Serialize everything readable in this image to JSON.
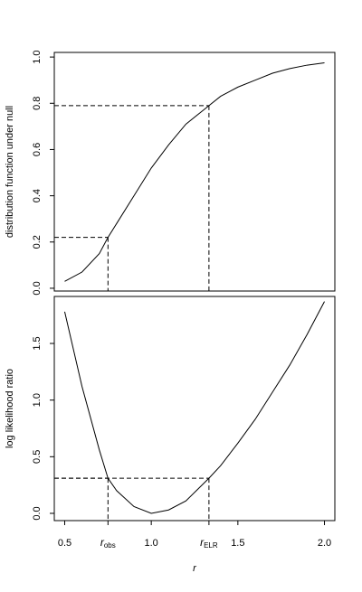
{
  "chart_data": [
    {
      "type": "line",
      "ylabel": "distribution function under null",
      "x": [
        0.5,
        0.6,
        0.7,
        0.75,
        0.8,
        0.9,
        1.0,
        1.1,
        1.2,
        1.3,
        1.333,
        1.4,
        1.5,
        1.6,
        1.7,
        1.8,
        1.9,
        2.0
      ],
      "values": [
        0.03,
        0.07,
        0.15,
        0.22,
        0.28,
        0.4,
        0.52,
        0.62,
        0.71,
        0.77,
        0.79,
        0.83,
        0.87,
        0.9,
        0.93,
        0.95,
        0.965,
        0.975
      ],
      "color": "#000000",
      "xlim": [
        0.44,
        2.06
      ],
      "ylim": [
        -0.012,
        1.02
      ],
      "yticks": [
        {
          "value": 0,
          "label": "0.0"
        },
        0.2,
        0.4,
        0.6,
        0.8,
        {
          "value": 1,
          "label": "1.0"
        }
      ],
      "reference_lines": [
        {
          "x": 0.75,
          "y": 0.22
        },
        {
          "x": 1.333,
          "y": 0.79
        }
      ]
    },
    {
      "type": "line",
      "ylabel": "log likelihood ratio",
      "xlabel": "r",
      "x": [
        0.5,
        0.6,
        0.7,
        0.75,
        0.8,
        0.9,
        1.0,
        1.1,
        1.2,
        1.333,
        1.4,
        1.5,
        1.6,
        1.7,
        1.8,
        1.9,
        2.0
      ],
      "values": [
        1.78,
        1.12,
        0.56,
        0.31,
        0.2,
        0.06,
        0.0,
        0.03,
        0.11,
        0.31,
        0.42,
        0.62,
        0.83,
        1.07,
        1.31,
        1.58,
        1.87
      ],
      "color": "#000000",
      "xlim": [
        0.44,
        2.06
      ],
      "ylim": [
        -0.064,
        1.915
      ],
      "xticks": [
        0.5,
        {
          "value": 0.75,
          "label": "r",
          "subscript": "obs"
        },
        {
          "value": 1,
          "label": "1.0"
        },
        {
          "value": 1.333,
          "label": "r",
          "subscript": "ELR"
        },
        1.5,
        {
          "value": 2,
          "label": "2.0"
        }
      ],
      "yticks": [
        {
          "value": 0,
          "label": "0.0"
        },
        0.5,
        {
          "value": 1,
          "label": "1.0"
        },
        1.5
      ],
      "reference_lines": [
        {
          "x": 0.75,
          "y": 0.31
        },
        {
          "x": 1.333,
          "y": 0.31
        }
      ]
    }
  ]
}
